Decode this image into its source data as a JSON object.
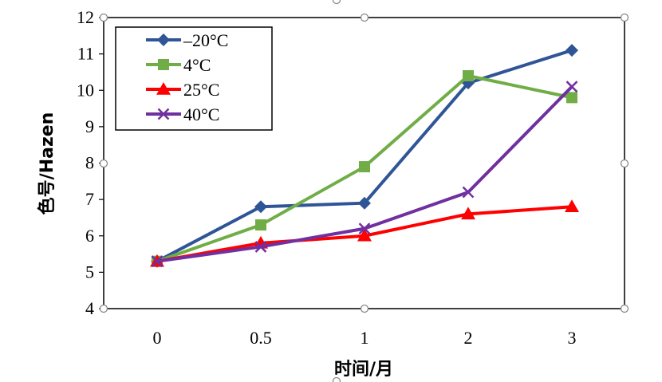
{
  "chart_data": {
    "type": "line",
    "xlabel": "时间/月",
    "ylabel": "色号/Hazen",
    "categories": [
      "0",
      "0.5",
      "1",
      "2",
      "3"
    ],
    "ylim": [
      4,
      12
    ],
    "yticks": [
      "4",
      "5",
      "6",
      "7",
      "8",
      "9",
      "10",
      "11",
      "12"
    ],
    "grid": false,
    "legend": "top-left",
    "series": [
      {
        "name": "–20°C",
        "color": "#2F5597",
        "marker": "diamond",
        "values": [
          5.3,
          6.8,
          6.9,
          10.2,
          11.1
        ]
      },
      {
        "name": "4°C",
        "color": "#70AD47",
        "marker": "square",
        "values": [
          5.3,
          6.3,
          7.9,
          10.4,
          9.8
        ]
      },
      {
        "name": "25°C",
        "color": "#FF0000",
        "marker": "triangle",
        "values": [
          5.3,
          5.8,
          6.0,
          6.6,
          6.8
        ]
      },
      {
        "name": "40°C",
        "color": "#7030A0",
        "marker": "x",
        "values": [
          5.3,
          5.7,
          6.2,
          7.2,
          10.1
        ]
      }
    ]
  }
}
